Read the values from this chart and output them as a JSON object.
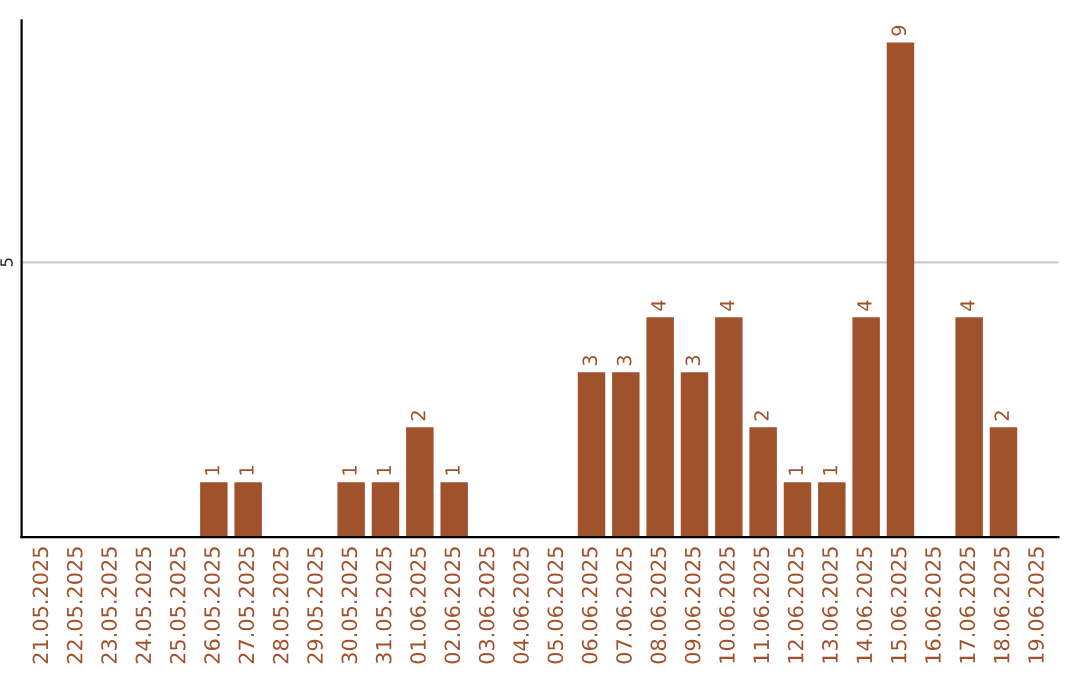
{
  "chart_data": {
    "type": "bar",
    "categories": [
      "21.05.2025",
      "22.05.2025",
      "23.05.2025",
      "24.05.2025",
      "25.05.2025",
      "26.05.2025",
      "27.05.2025",
      "28.05.2025",
      "29.05.2025",
      "30.05.2025",
      "31.05.2025",
      "01.06.2025",
      "02.06.2025",
      "03.06.2025",
      "04.06.2025",
      "05.06.2025",
      "06.06.2025",
      "07.06.2025",
      "08.06.2025",
      "09.06.2025",
      "10.06.2025",
      "11.06.2025",
      "12.06.2025",
      "13.06.2025",
      "14.06.2025",
      "15.06.2025",
      "16.06.2025",
      "17.06.2025",
      "18.06.2025",
      "19.06.2025"
    ],
    "values": [
      0,
      0,
      0,
      0,
      0,
      1,
      1,
      0,
      0,
      1,
      1,
      2,
      1,
      0,
      0,
      0,
      3,
      3,
      4,
      3,
      4,
      2,
      1,
      1,
      4,
      9,
      0,
      4,
      2,
      0
    ],
    "value_labels": [
      null,
      null,
      null,
      null,
      null,
      "1",
      "1",
      null,
      null,
      "1",
      "1",
      "2",
      "1",
      null,
      null,
      null,
      "3",
      "3",
      "4",
      "3",
      "4",
      "2",
      "1",
      "1",
      "4",
      "9",
      null,
      "4",
      "2",
      null
    ],
    "color": "#a0522d",
    "ylim": [
      0,
      9.4
    ],
    "yticks": [
      5
    ],
    "grid": "y",
    "legend": false
  }
}
